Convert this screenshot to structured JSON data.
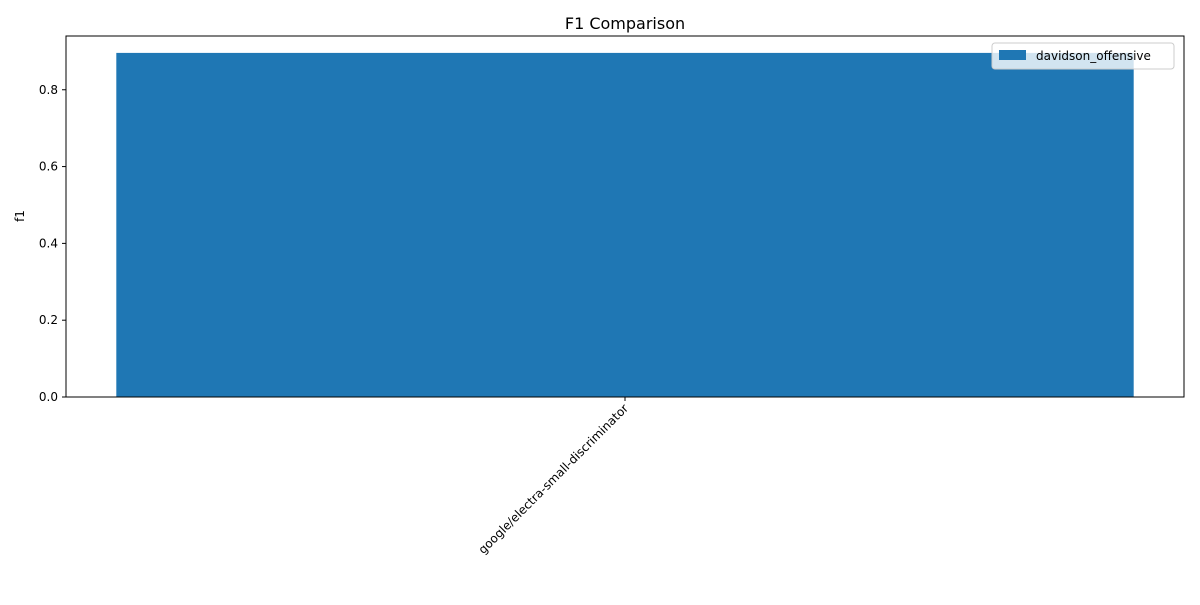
{
  "chart_data": {
    "type": "bar",
    "title": "F1 Comparison",
    "xlabel": "",
    "ylabel": "f1",
    "categories": [
      "google/electra-small-discriminator"
    ],
    "series": [
      {
        "name": "davidson_offensive",
        "values": [
          0.896
        ],
        "color": "#1f77b4"
      }
    ],
    "ylim": [
      0,
      0.94
    ],
    "yticks": [
      0.0,
      0.2,
      0.4,
      0.6,
      0.8
    ],
    "ytick_labels": [
      "0.0",
      "0.2",
      "0.4",
      "0.6",
      "0.8"
    ],
    "grid": false,
    "legend_position": "top-right"
  }
}
